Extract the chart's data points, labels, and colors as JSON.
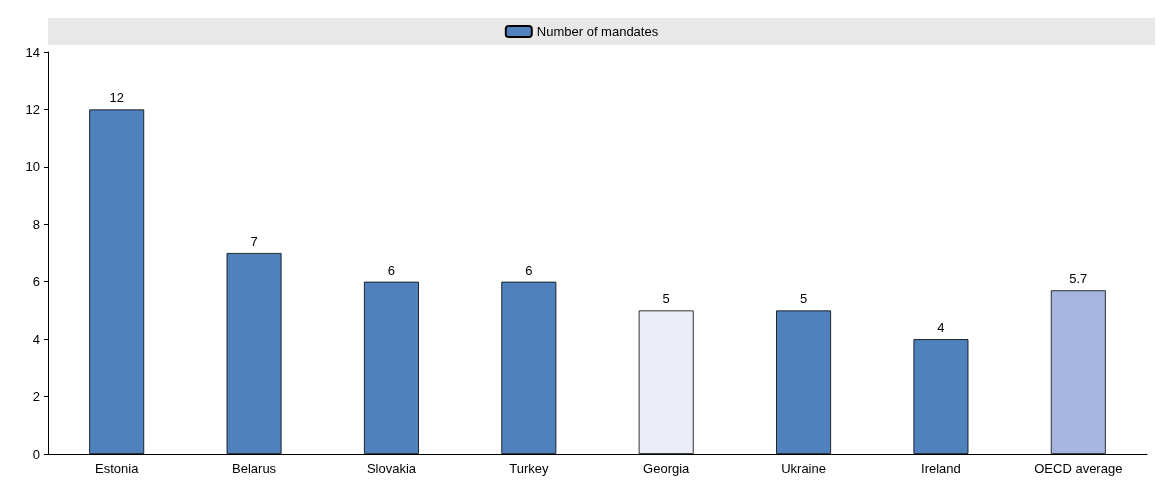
{
  "chart_data": {
    "type": "bar",
    "categories": [
      "Estonia",
      "Belarus",
      "Slovakia",
      "Turkey",
      "Georgia",
      "Ukraine",
      "Ireland",
      "OECD average"
    ],
    "series": [
      {
        "name": "Number of mandates",
        "color": "#4f81bd",
        "colors": [
          "#4f81bd",
          "#4f81bd",
          "#4f81bd",
          "#4f81bd",
          "#eceef7",
          "#4f81bd",
          "#4f81bd",
          "#a6b6e0"
        ],
        "values": [
          12,
          7,
          6,
          6,
          5,
          5,
          4,
          5.7
        ]
      }
    ],
    "ylim": [
      0,
      14
    ],
    "yticks": [
      0,
      2,
      4,
      6,
      8,
      10,
      12,
      14
    ],
    "data_labels": true,
    "legend": "top",
    "grid": false
  }
}
